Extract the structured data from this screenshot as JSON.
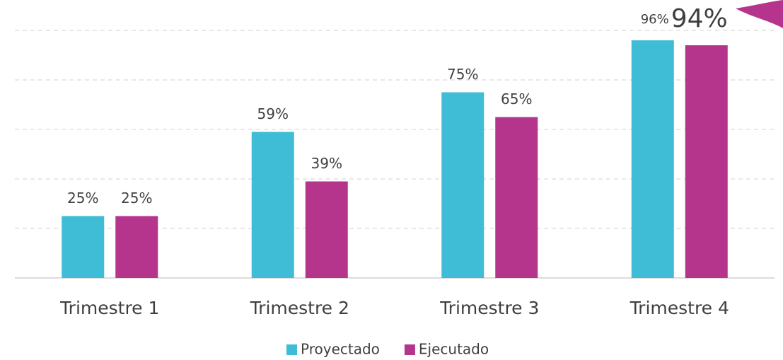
{
  "chart_data": {
    "type": "bar",
    "categories": [
      "Trimestre 1",
      "Trimestre 2",
      "Trimestre 3",
      "Trimestre 4"
    ],
    "series": [
      {
        "name": "Proyectado",
        "color": "#3fbcd6",
        "values": [
          25,
          59,
          75,
          96
        ],
        "value_labels": [
          "25%",
          "59%",
          "75%",
          "96%"
        ]
      },
      {
        "name": "Ejecutado",
        "color": "#b5358c",
        "values": [
          25,
          39,
          65,
          94
        ],
        "value_labels": [
          "25%",
          "39%",
          "65%",
          "94%"
        ]
      }
    ],
    "ylim": [
      0,
      100
    ],
    "yticks": [
      0,
      20,
      40,
      60,
      80,
      100
    ],
    "grid": true,
    "legend": "bottom"
  }
}
